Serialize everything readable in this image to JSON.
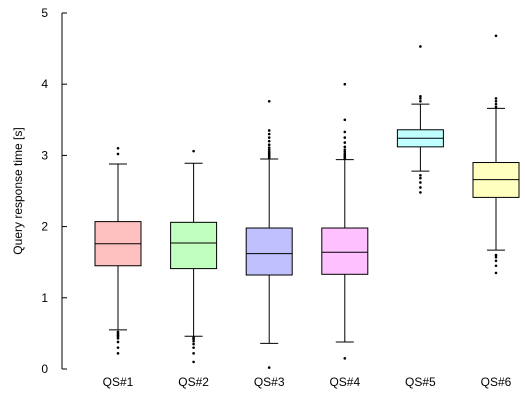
{
  "chart_data": {
    "type": "box",
    "title": "",
    "xlabel": "",
    "ylabel": "Query response time [s]",
    "ylim": [
      0,
      5
    ],
    "yticks": [
      "0",
      "1",
      "2",
      "3",
      "4",
      "5"
    ],
    "grid": false,
    "legend": "none",
    "categories": [
      "QS#1",
      "QS#2",
      "QS#3",
      "QS#4",
      "QS#5",
      "QS#6"
    ],
    "boxes": [
      {
        "name": "QS#1",
        "color": "#ffc0c0",
        "q1": 1.45,
        "median": 1.76,
        "q3": 2.07,
        "whisker_low": 0.55,
        "whisker_high": 2.88,
        "outliers": [
          0.22,
          0.3,
          0.38,
          0.43,
          0.45,
          0.47,
          0.48,
          0.5,
          0.52,
          3.02,
          3.1
        ]
      },
      {
        "name": "QS#2",
        "color": "#c0ffc0",
        "q1": 1.41,
        "median": 1.77,
        "q3": 2.06,
        "whisker_low": 0.46,
        "whisker_high": 2.89,
        "outliers": [
          0.1,
          0.22,
          0.3,
          0.35,
          0.39,
          0.42,
          0.44,
          3.06
        ]
      },
      {
        "name": "QS#3",
        "color": "#c0c0ff",
        "q1": 1.32,
        "median": 1.62,
        "q3": 1.98,
        "whisker_low": 0.36,
        "whisker_high": 2.95,
        "outliers": [
          0.02,
          2.97,
          2.99,
          3.01,
          3.03,
          3.05,
          3.08,
          3.11,
          3.15,
          3.2,
          3.25,
          3.3,
          3.35,
          3.76
        ]
      },
      {
        "name": "QS#4",
        "color": "#ffc0ff",
        "q1": 1.33,
        "median": 1.64,
        "q3": 1.98,
        "whisker_low": 0.38,
        "whisker_high": 2.94,
        "outliers": [
          0.15,
          2.96,
          2.98,
          3.0,
          3.02,
          3.05,
          3.08,
          3.12,
          3.18,
          3.25,
          3.33,
          3.5,
          4.0
        ]
      },
      {
        "name": "QS#5",
        "color": "#c0ffff",
        "q1": 3.12,
        "median": 3.24,
        "q3": 3.36,
        "whisker_low": 2.78,
        "whisker_high": 3.72,
        "outliers": [
          2.48,
          2.55,
          2.62,
          2.68,
          2.72,
          3.76,
          3.8,
          3.83,
          4.53
        ]
      },
      {
        "name": "QS#6",
        "color": "#ffffc0",
        "q1": 2.41,
        "median": 2.66,
        "q3": 2.9,
        "whisker_low": 1.67,
        "whisker_high": 3.66,
        "outliers": [
          1.35,
          1.45,
          1.52,
          1.57,
          1.6,
          3.68,
          3.72,
          3.76,
          3.8,
          4.68
        ]
      }
    ]
  }
}
